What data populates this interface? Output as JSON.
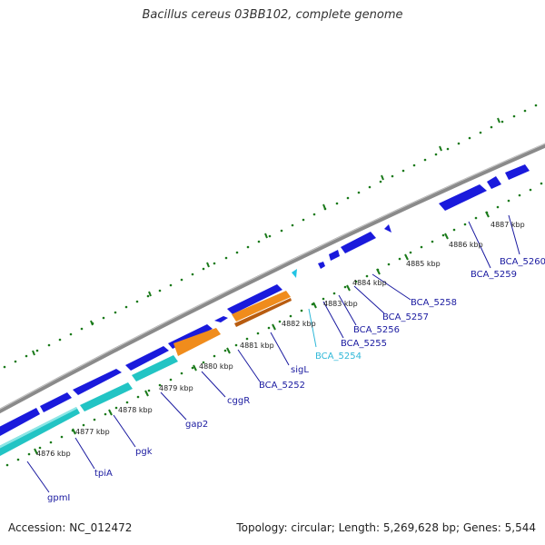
{
  "title": "Bacillus cereus 03BB102, complete genome",
  "footer": {
    "accession": "Accession: NC_012472",
    "topology": "Topology: circular; Length: 5,269,628 bp; Genes: 5,544"
  },
  "colors": {
    "backbone": "#8a8a8a",
    "tick": "#1a7a1a",
    "gene_blue": "#1a1adc",
    "gene_cyan": "#22c4c4",
    "gene_orange": "#f08c1c",
    "label_blue": "#1a1aa0",
    "label_cyan": "#30b8d8"
  },
  "ticks": [
    {
      "label": "4876 kbp"
    },
    {
      "label": "4877 kbp"
    },
    {
      "label": "4878 kbp"
    },
    {
      "label": "4879 kbp"
    },
    {
      "label": "4880 kbp"
    },
    {
      "label": "4881 kbp"
    },
    {
      "label": "4882 kbp"
    },
    {
      "label": "4883 kbp"
    },
    {
      "label": "4884 kbp"
    },
    {
      "label": "4885 kbp"
    },
    {
      "label": "4886 kbp"
    },
    {
      "label": "4887 kbp"
    }
  ],
  "gene_labels": [
    {
      "name": "gpmI",
      "color": "label_blue"
    },
    {
      "name": "tpiA",
      "color": "label_blue"
    },
    {
      "name": "pgk",
      "color": "label_blue"
    },
    {
      "name": "gap2",
      "color": "label_blue"
    },
    {
      "name": "cggR",
      "color": "label_blue"
    },
    {
      "name": "BCA_5252",
      "color": "label_blue"
    },
    {
      "name": "sigL",
      "color": "label_blue"
    },
    {
      "name": "BCA_5254",
      "color": "label_cyan"
    },
    {
      "name": "BCA_5255",
      "color": "label_blue"
    },
    {
      "name": "BCA_5256",
      "color": "label_blue"
    },
    {
      "name": "BCA_5257",
      "color": "label_blue"
    },
    {
      "name": "BCA_5258",
      "color": "label_blue"
    },
    {
      "name": "BCA_5259",
      "color": "label_blue"
    },
    {
      "name": "BCA_5260",
      "color": "label_blue"
    }
  ]
}
